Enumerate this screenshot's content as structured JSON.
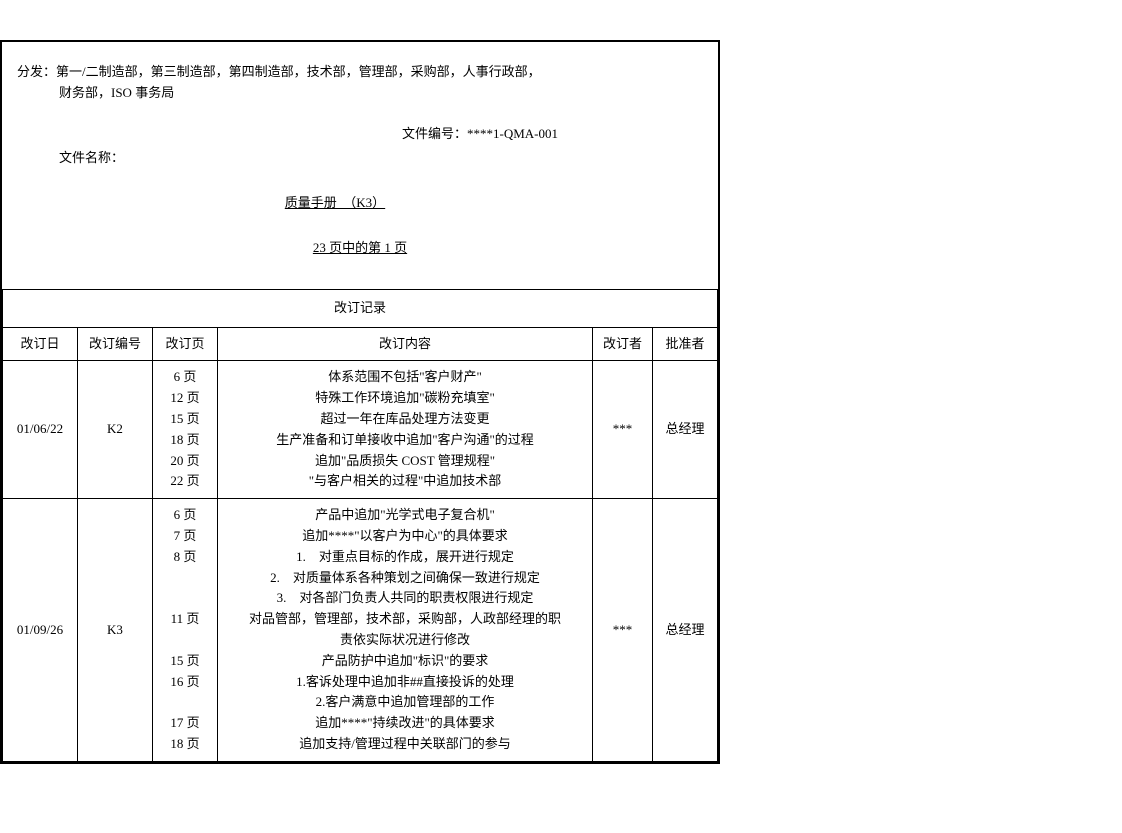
{
  "header": {
    "distribution_label": "分发：",
    "distribution_line1": "第一/二制造部，第三制造部，第四制造部，技术部，管理部，采购部，人事行政部，",
    "distribution_line2": "财务部，ISO 事务局",
    "doc_number_label": "文件编号：",
    "doc_number": "****1-QMA-001",
    "doc_name_label": "文件名称：",
    "doc_title": "质量手册　（K3）",
    "page_info": "23 页中的第 1 页"
  },
  "table": {
    "title": "改订记录",
    "columns": {
      "date": "改订日",
      "revno": "改订编号",
      "page": "改订页",
      "content": "改订内容",
      "reviser": "改订者",
      "approver": "批准者"
    },
    "rows": [
      {
        "date": "01/06/22",
        "revno": "K2",
        "pages": [
          "6 页",
          "12 页",
          "15 页",
          "18 页",
          "20 页",
          "22 页"
        ],
        "contents": [
          "体系范围不包括\"客户财产\"",
          "特殊工作环境追加\"碳粉充填室\"",
          "超过一年在库品处理方法变更",
          "生产准备和订单接收中追加\"客户沟通\"的过程",
          "追加\"品质损失 COST 管理规程\"",
          "\"与客户相关的过程\"中追加技术部"
        ],
        "reviser": "***",
        "approver": "总经理"
      },
      {
        "date": "01/09/26",
        "revno": "K3",
        "pages": [
          "6 页",
          "7 页",
          "8 页",
          "",
          "",
          "11 页",
          "",
          "15 页",
          "16 页",
          "",
          "17 页",
          "18 页"
        ],
        "contents": [
          "产品中追加\"光学式电子复合机\"",
          "追加****\"以客户为中心\"的具体要求",
          "1.　对重点目标的作成，展开进行规定",
          "2.　对质量体系各种策划之间确保一致进行规定",
          "3.　对各部门负责人共同的职责权限进行规定",
          "对品管部，管理部，技术部，采购部，人政部经理的职",
          "责依实际状况进行修改",
          "产品防护中追加\"标识\"的要求",
          "1.客诉处理中追加非##直接投诉的处理",
          "2.客户满意中追加管理部的工作",
          "追加****\"持续改进\"的具体要求",
          "追加支持/管理过程中关联部门的参与"
        ],
        "reviser": "***",
        "approver": "总经理"
      }
    ]
  }
}
